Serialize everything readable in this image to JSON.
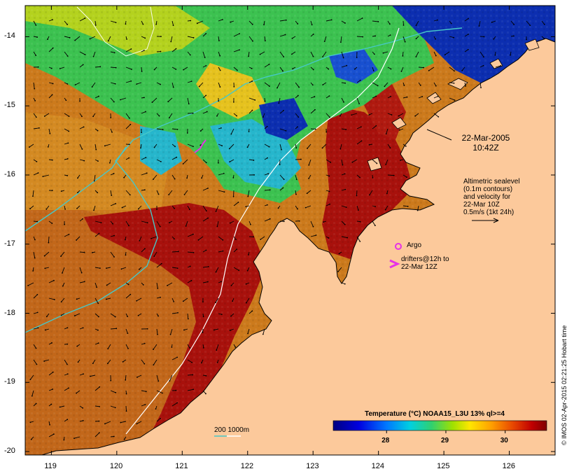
{
  "map": {
    "date_line1": "22-Mar-2005",
    "date_line2": "10:42Z",
    "altimetry_note": [
      "Altimetric sealevel",
      "(0.1m contours)",
      "and velocity for",
      "22-Mar 10Z",
      "0.5m/s (1kt 24h)"
    ],
    "argo_label": "Argo",
    "drifters_label": [
      "drifters@12h to",
      "22-Mar 12Z"
    ],
    "depth_scale_label": "200  1000m",
    "colorbar_title": "Temperature (°C) NOAA15_L3U 13% ql>=4",
    "colorbar_ticks": [
      "28",
      "29",
      "30"
    ],
    "colorbar_range": [
      27.1,
      30.7
    ],
    "lat_ticks": [
      "-14",
      "-15",
      "-16",
      "-17",
      "-18",
      "-19",
      "-20"
    ],
    "lon_ticks": [
      "119",
      "120",
      "121",
      "122",
      "123",
      "124",
      "125",
      "126"
    ],
    "credit": "© IMOS 02-Apr-2015 02:21:25 Hobart time",
    "colors": {
      "land": "#fcc99b",
      "warm": "#a80a0a",
      "ocean_warm": "#c86414",
      "ocean_orange": "#d8861e",
      "cool_green": "#46c864",
      "cool_cyan": "#28b4d2",
      "cool_blue": "#0a28b4",
      "isobath_200": "#46c8c8",
      "isobath_1000": "#ffffff",
      "argo": "#e632e6"
    }
  }
}
